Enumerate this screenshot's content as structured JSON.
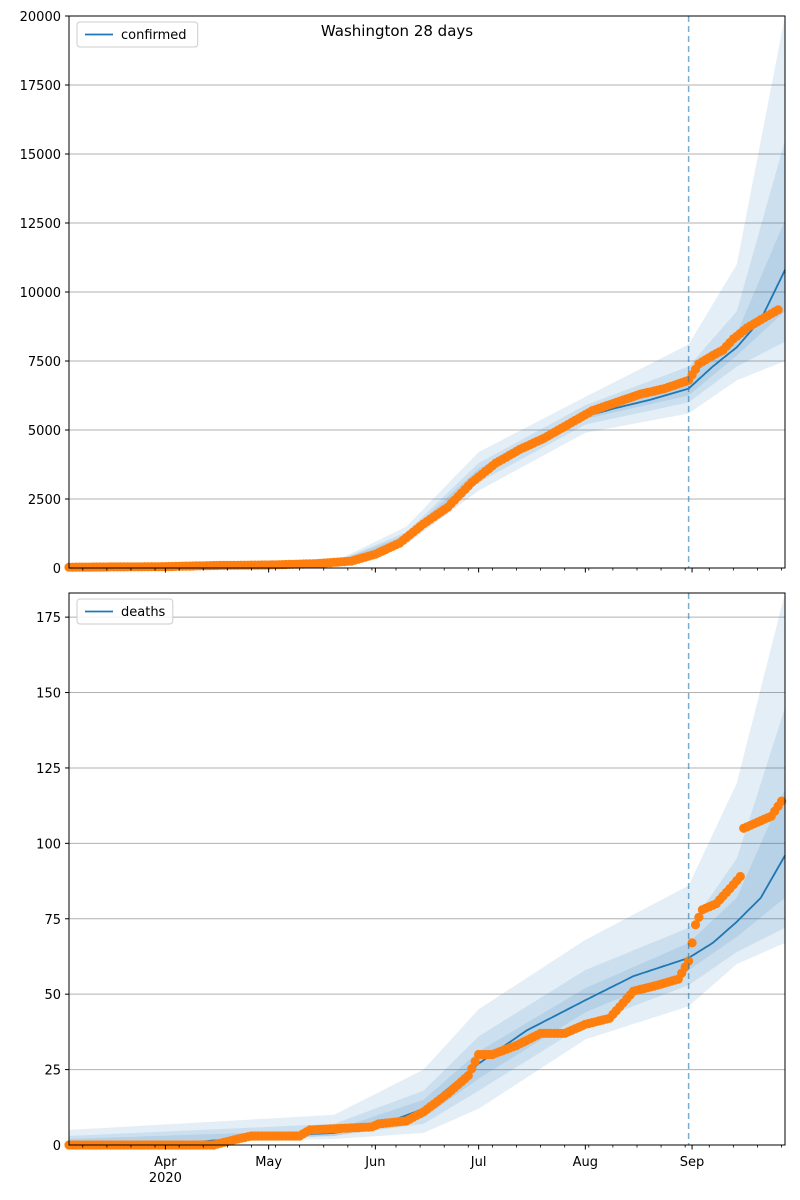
{
  "title": "Washington 28 days",
  "colors": {
    "line": "#1f77b4",
    "band": "#1f77b4",
    "observed": "#ff7f0e",
    "grid": "#b0b0b0",
    "forecast_line": "#1f77b4"
  },
  "chart_data": [
    {
      "type": "line",
      "panel": "confirmed",
      "legend": [
        "confirmed"
      ],
      "legend_position": "upper-left",
      "grid": "y",
      "ylim": [
        0,
        20000
      ],
      "yticks": [
        0,
        2500,
        5000,
        7500,
        10000,
        12500,
        15000,
        17500,
        20000
      ],
      "xlim": [
        "2020-03-04",
        "2020-09-28"
      ],
      "forecast_start": "2020-08-31",
      "model": [
        [
          "2020-03-04",
          40
        ],
        [
          "2020-04-01",
          55
        ],
        [
          "2020-05-01",
          120
        ],
        [
          "2020-05-20",
          180
        ],
        [
          "2020-06-01",
          550
        ],
        [
          "2020-06-10",
          1100
        ],
        [
          "2020-06-20",
          2000
        ],
        [
          "2020-07-01",
          3400
        ],
        [
          "2020-07-10",
          4200
        ],
        [
          "2020-07-20",
          4800
        ],
        [
          "2020-08-01",
          5500
        ],
        [
          "2020-08-10",
          5800
        ],
        [
          "2020-08-20",
          6100
        ],
        [
          "2020-08-31",
          6500
        ],
        [
          "2020-09-07",
          7300
        ],
        [
          "2020-09-14",
          8000
        ],
        [
          "2020-09-21",
          9000
        ],
        [
          "2020-09-28",
          10800
        ]
      ],
      "bands": [
        {
          "lower": [
            [
              "2020-03-04",
              30
            ],
            [
              "2020-05-20",
              150
            ],
            [
              "2020-06-10",
              850
            ],
            [
              "2020-07-01",
              2800
            ],
            [
              "2020-08-01",
              4900
            ],
            [
              "2020-08-31",
              5600
            ],
            [
              "2020-09-14",
              6800
            ],
            [
              "2020-09-28",
              7500
            ]
          ],
          "upper": [
            [
              "2020-03-04",
              60
            ],
            [
              "2020-05-20",
              230
            ],
            [
              "2020-06-10",
              1500
            ],
            [
              "2020-07-01",
              4200
            ],
            [
              "2020-08-01",
              6200
            ],
            [
              "2020-08-31",
              8100
            ],
            [
              "2020-09-14",
              11000
            ],
            [
              "2020-09-28",
              20000
            ]
          ]
        },
        {
          "lower": [
            [
              "2020-03-04",
              35
            ],
            [
              "2020-05-20",
              160
            ],
            [
              "2020-06-10",
              950
            ],
            [
              "2020-07-01",
              3100
            ],
            [
              "2020-08-01",
              5200
            ],
            [
              "2020-08-31",
              6000
            ],
            [
              "2020-09-14",
              7300
            ],
            [
              "2020-09-28",
              8200
            ]
          ],
          "upper": [
            [
              "2020-03-04",
              50
            ],
            [
              "2020-05-20",
              210
            ],
            [
              "2020-06-10",
              1300
            ],
            [
              "2020-07-01",
              3800
            ],
            [
              "2020-08-01",
              5900
            ],
            [
              "2020-08-31",
              7300
            ],
            [
              "2020-09-14",
              9300
            ],
            [
              "2020-09-28",
              15500
            ]
          ]
        },
        {
          "lower": [
            [
              "2020-03-04",
              38
            ],
            [
              "2020-05-20",
              170
            ],
            [
              "2020-06-10",
              1030
            ],
            [
              "2020-07-01",
              3300
            ],
            [
              "2020-08-01",
              5400
            ],
            [
              "2020-08-31",
              6250
            ],
            [
              "2020-09-14",
              7700
            ],
            [
              "2020-09-28",
              9300
            ]
          ],
          "upper": [
            [
              "2020-03-04",
              45
            ],
            [
              "2020-05-20",
              195
            ],
            [
              "2020-06-10",
              1200
            ],
            [
              "2020-07-01",
              3600
            ],
            [
              "2020-08-01",
              5700
            ],
            [
              "2020-08-31",
              6900
            ],
            [
              "2020-09-14",
              8500
            ],
            [
              "2020-09-28",
              12600
            ]
          ]
        }
      ],
      "observed": [
        [
          "2020-03-04",
          30
        ],
        [
          "2020-04-01",
          50
        ],
        [
          "2020-04-15",
          90
        ],
        [
          "2020-05-01",
          110
        ],
        [
          "2020-05-15",
          160
        ],
        [
          "2020-05-25",
          250
        ],
        [
          "2020-06-01",
          500
        ],
        [
          "2020-06-08",
          900
        ],
        [
          "2020-06-15",
          1600
        ],
        [
          "2020-06-22",
          2200
        ],
        [
          "2020-06-29",
          3100
        ],
        [
          "2020-07-06",
          3800
        ],
        [
          "2020-07-13",
          4300
        ],
        [
          "2020-07-20",
          4700
        ],
        [
          "2020-07-27",
          5200
        ],
        [
          "2020-08-03",
          5700
        ],
        [
          "2020-08-10",
          6000
        ],
        [
          "2020-08-17",
          6300
        ],
        [
          "2020-08-24",
          6500
        ],
        [
          "2020-08-31",
          6800
        ],
        [
          "2020-09-03",
          7400
        ],
        [
          "2020-09-07",
          7700
        ],
        [
          "2020-09-10",
          7900
        ],
        [
          "2020-09-13",
          8300
        ],
        [
          "2020-09-17",
          8700
        ],
        [
          "2020-09-21",
          9000
        ],
        [
          "2020-09-26",
          9350
        ]
      ]
    },
    {
      "type": "line",
      "panel": "deaths",
      "legend": [
        "deaths"
      ],
      "legend_position": "upper-left",
      "grid": "y",
      "ylim": [
        0,
        183
      ],
      "yticks": [
        0,
        25,
        50,
        75,
        100,
        125,
        150,
        175
      ],
      "xticks": [
        "Apr",
        "May",
        "Jun",
        "Jul",
        "Aug",
        "Sep"
      ],
      "xtick_year": "2020",
      "xlim": [
        "2020-03-04",
        "2020-09-28"
      ],
      "forecast_start": "2020-08-31",
      "model": [
        [
          "2020-03-04",
          0
        ],
        [
          "2020-04-10",
          1
        ],
        [
          "2020-05-01",
          3
        ],
        [
          "2020-05-20",
          4
        ],
        [
          "2020-06-01",
          6
        ],
        [
          "2020-06-15",
          12
        ],
        [
          "2020-07-01",
          27
        ],
        [
          "2020-07-15",
          38
        ],
        [
          "2020-08-01",
          48
        ],
        [
          "2020-08-15",
          56
        ],
        [
          "2020-08-31",
          62
        ],
        [
          "2020-09-07",
          67
        ],
        [
          "2020-09-14",
          74
        ],
        [
          "2020-09-21",
          82
        ],
        [
          "2020-09-28",
          96
        ]
      ],
      "bands": [
        {
          "lower": [
            [
              "2020-03-04",
              0
            ],
            [
              "2020-05-20",
              2
            ],
            [
              "2020-06-15",
              4
            ],
            [
              "2020-07-01",
              12
            ],
            [
              "2020-08-01",
              35
            ],
            [
              "2020-08-31",
              46
            ],
            [
              "2020-09-14",
              60
            ],
            [
              "2020-09-28",
              67
            ]
          ],
          "upper": [
            [
              "2020-03-04",
              5
            ],
            [
              "2020-05-20",
              10
            ],
            [
              "2020-06-15",
              25
            ],
            [
              "2020-07-01",
              45
            ],
            [
              "2020-08-01",
              68
            ],
            [
              "2020-08-31",
              86
            ],
            [
              "2020-09-14",
              120
            ],
            [
              "2020-09-28",
              183
            ]
          ]
        },
        {
          "lower": [
            [
              "2020-03-04",
              0
            ],
            [
              "2020-05-20",
              3
            ],
            [
              "2020-06-15",
              7
            ],
            [
              "2020-07-01",
              18
            ],
            [
              "2020-08-01",
              40
            ],
            [
              "2020-08-31",
              53
            ],
            [
              "2020-09-14",
              64
            ],
            [
              "2020-09-28",
              72
            ]
          ],
          "upper": [
            [
              "2020-03-04",
              3
            ],
            [
              "2020-05-20",
              7
            ],
            [
              "2020-06-15",
              18
            ],
            [
              "2020-07-01",
              36
            ],
            [
              "2020-08-01",
              58
            ],
            [
              "2020-08-31",
              72
            ],
            [
              "2020-09-14",
              95
            ],
            [
              "2020-09-28",
              145
            ]
          ]
        },
        {
          "lower": [
            [
              "2020-03-04",
              0
            ],
            [
              "2020-05-20",
              3
            ],
            [
              "2020-06-15",
              9
            ],
            [
              "2020-07-01",
              22
            ],
            [
              "2020-08-01",
              44
            ],
            [
              "2020-08-31",
              58
            ],
            [
              "2020-09-14",
              69
            ],
            [
              "2020-09-28",
              82
            ]
          ],
          "upper": [
            [
              "2020-03-04",
              2
            ],
            [
              "2020-05-20",
              5
            ],
            [
              "2020-06-15",
              15
            ],
            [
              "2020-07-01",
              31
            ],
            [
              "2020-08-01",
              52
            ],
            [
              "2020-08-31",
              67
            ],
            [
              "2020-09-14",
              82
            ],
            [
              "2020-09-28",
              118
            ]
          ]
        }
      ],
      "observed": [
        [
          "2020-03-04",
          0
        ],
        [
          "2020-04-15",
          0
        ],
        [
          "2020-04-22",
          2
        ],
        [
          "2020-04-26",
          3
        ],
        [
          "2020-05-10",
          3
        ],
        [
          "2020-05-13",
          5
        ],
        [
          "2020-05-31",
          6
        ],
        [
          "2020-06-02",
          7
        ],
        [
          "2020-06-10",
          8
        ],
        [
          "2020-06-15",
          11
        ],
        [
          "2020-06-22",
          17
        ],
        [
          "2020-06-28",
          23
        ],
        [
          "2020-07-01",
          30
        ],
        [
          "2020-07-05",
          30
        ],
        [
          "2020-07-12",
          33
        ],
        [
          "2020-07-19",
          37
        ],
        [
          "2020-07-26",
          37
        ],
        [
          "2020-08-01",
          40
        ],
        [
          "2020-08-08",
          42
        ],
        [
          "2020-08-15",
          51
        ],
        [
          "2020-08-22",
          53
        ],
        [
          "2020-08-28",
          55
        ],
        [
          "2020-08-31",
          61
        ],
        [
          "2020-09-02",
          73
        ],
        [
          "2020-09-04",
          78
        ],
        [
          "2020-09-08",
          80
        ],
        [
          "2020-09-12",
          85
        ],
        [
          "2020-09-15",
          89
        ],
        [
          "2020-09-16",
          105
        ],
        [
          "2020-09-20",
          107
        ],
        [
          "2020-09-24",
          109
        ],
        [
          "2020-09-27",
          114
        ]
      ]
    }
  ]
}
